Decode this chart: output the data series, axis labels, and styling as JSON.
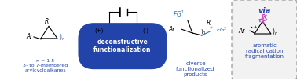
{
  "bg_color": "#ffffff",
  "left_structure_label": "n = 1-5\n3- to 7-membered\narylcycloalkanes",
  "box_label_line1": "deconstructive",
  "box_label_line2": "functionalization",
  "box_color": "#2244aa",
  "box_text_color": "#ffffff",
  "middle_label_line1": "diverse",
  "middle_label_line2": "functionalized",
  "middle_label_line3": "products",
  "middle_label_color": "#2244aa",
  "right_box_label_via": "via",
  "right_box_label_line1": "aromatic",
  "right_box_label_line2": "radical cation",
  "right_box_label_line3": "fragmentation",
  "right_box_color": "#2244aa",
  "dashed_box_color": "#999999",
  "label_color": "#000000",
  "FG_color": "#2a7ab5",
  "pink_color": "#cc44bb",
  "n_label_color": "#2244aa",
  "dark_electrode": "#666666",
  "light_electrode": "#cccccc"
}
